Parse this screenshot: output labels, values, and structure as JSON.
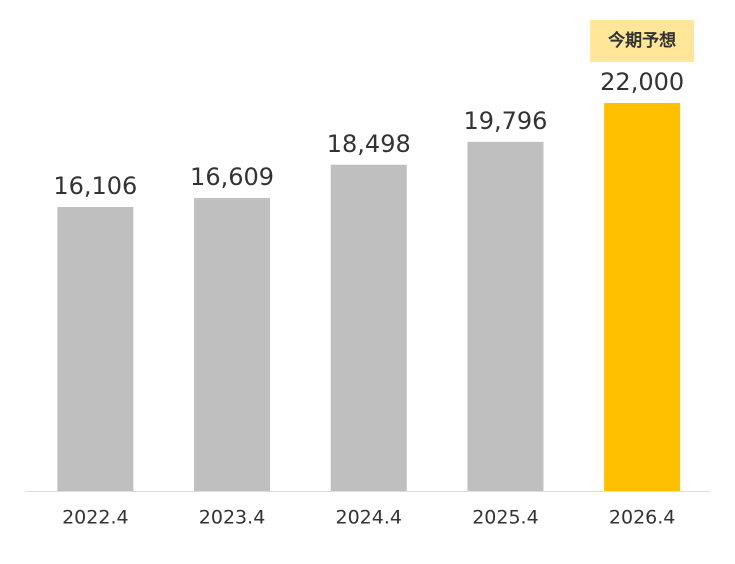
{
  "chart_data": {
    "type": "bar",
    "categories": [
      "2022.4",
      "2023.4",
      "2024.4",
      "2025.4",
      "2026.4"
    ],
    "values": [
      16106,
      16609,
      18498,
      19796,
      22000
    ],
    "value_labels": [
      "16,106",
      "16,609",
      "18,498",
      "19,796",
      "22,000"
    ],
    "colors": [
      "#bfbfbf",
      "#bfbfbf",
      "#bfbfbf",
      "#bfbfbf",
      "#ffc000"
    ],
    "annotation": "今期予想",
    "ylim": [
      0,
      22000
    ]
  }
}
